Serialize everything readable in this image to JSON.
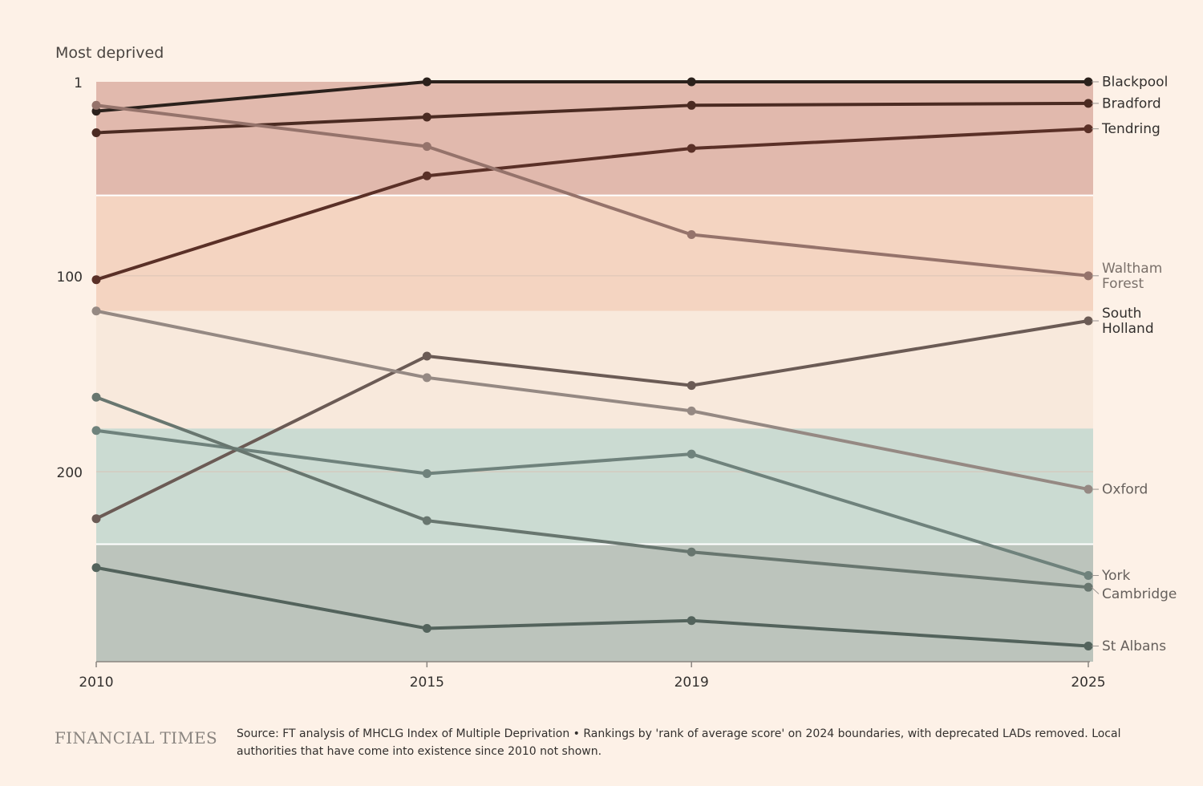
{
  "chart_data": {
    "type": "line",
    "title": "Most deprived",
    "xlabel": "",
    "ylabel": "Most deprived",
    "x": [
      2010,
      2015,
      2019,
      2025
    ],
    "x_tick_labels": [
      "2010",
      "2015",
      "2019",
      "2025"
    ],
    "y_ticks": [
      1,
      100,
      200
    ],
    "y_tick_labels": [
      "1",
      "100",
      "200"
    ],
    "ylim": [
      1,
      297
    ],
    "y_inverted": true,
    "grid": true,
    "bands": [
      {
        "from": 1,
        "to": 59,
        "color": "#e1b9ad"
      },
      {
        "from": 59,
        "to": 118,
        "color": "#f4d4c1"
      },
      {
        "from": 118,
        "to": 178,
        "color": "#f8e9dc"
      },
      {
        "from": 178,
        "to": 237,
        "color": "#cbdbd2"
      },
      {
        "from": 237,
        "to": 297,
        "color": "#bcc4bc"
      }
    ],
    "series": [
      {
        "name": "Blackpool",
        "label_lines": [
          "Blackpool"
        ],
        "values": [
          16,
          1,
          1,
          1
        ],
        "color": "#2b211c",
        "label_color": "#33302e"
      },
      {
        "name": "Bradford",
        "label_lines": [
          "Bradford"
        ],
        "values": [
          27,
          19,
          13,
          12
        ],
        "color": "#4b2b22",
        "label_color": "#33302e"
      },
      {
        "name": "Tendring",
        "label_lines": [
          "Tendring"
        ],
        "values": [
          102,
          49,
          35,
          25
        ],
        "color": "#5a3027",
        "label_color": "#33302e"
      },
      {
        "name": "Waltham Forest",
        "label_lines": [
          "Waltham",
          "Forest"
        ],
        "values": [
          13,
          34,
          79,
          100
        ],
        "color": "#95736b",
        "label_color": "#7a706a"
      },
      {
        "name": "South Holland",
        "label_lines": [
          "South",
          "Holland"
        ],
        "values": [
          224,
          141,
          156,
          123
        ],
        "color": "#6b5b55",
        "label_color": "#33302e"
      },
      {
        "name": "Oxford",
        "label_lines": [
          "Oxford"
        ],
        "values": [
          118,
          152,
          169,
          209
        ],
        "color": "#958983",
        "label_color": "#66605c"
      },
      {
        "name": "York",
        "label_lines": [
          "York"
        ],
        "values": [
          179,
          201,
          191,
          253
        ],
        "color": "#6f827c",
        "label_color": "#66605c"
      },
      {
        "name": "Cambridge",
        "label_lines": [
          "Cambridge"
        ],
        "values": [
          162,
          225,
          241,
          259
        ],
        "color": "#68766f",
        "label_color": "#66605c"
      },
      {
        "name": "St Albans",
        "label_lines": [
          "St Albans"
        ],
        "values": [
          249,
          280,
          276,
          289
        ],
        "color": "#53635c",
        "label_color": "#66605c"
      }
    ]
  },
  "footer": {
    "brand": "FINANCIAL TIMES",
    "source": "Source: FT analysis of MHCLG Index of Multiple Deprivation • Rankings by 'rank of average score' on 2024 boundaries, with deprecated LADs removed. Local authorities that have come into existence since 2010 not shown."
  },
  "colors": {
    "background": "#fdf1e7",
    "axis": "#8a8580",
    "gridline": "#d9c4b6",
    "text": "#33302e"
  }
}
